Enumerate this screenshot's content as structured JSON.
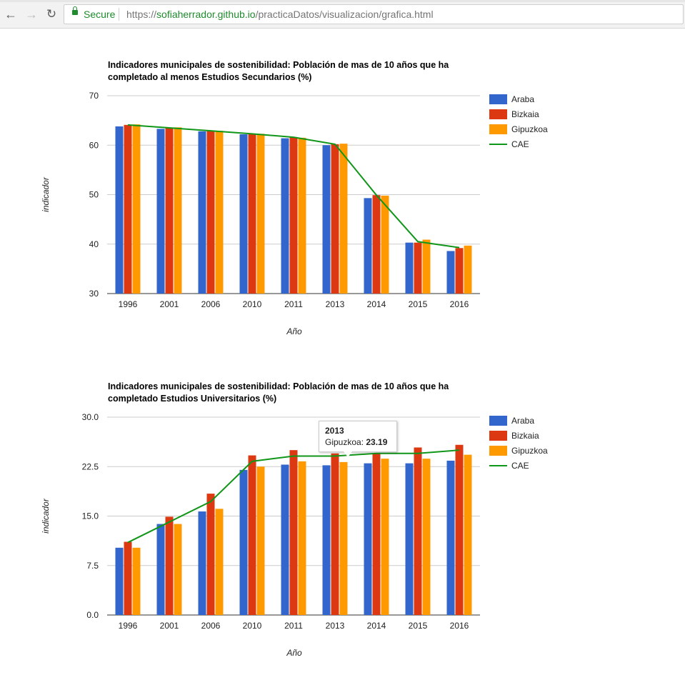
{
  "browser": {
    "back_icon": "←",
    "forward_icon": "→",
    "reload_icon": "↻",
    "secure_label": "Secure",
    "url_scheme": "https://",
    "url_host": "sofiaherrador.github.io",
    "url_path": "/practicaDatos/visualizacion/grafica.html"
  },
  "colors": {
    "Araba": "#3366cc",
    "Bizkaia": "#dc3912",
    "Gipuzkoa": "#ff9900",
    "CAE": "#109618"
  },
  "chart_data": [
    {
      "type": "bar",
      "title": [
        "Indicadores municipales de sostenibilidad: Población de mas de 10 años que ha",
        "completado al menos Estudios Secundarios (%)"
      ],
      "xlabel": "Año",
      "ylabel": "indicador",
      "categories": [
        "1996",
        "2001",
        "2006",
        "2010",
        "2011",
        "2013",
        "2014",
        "2015",
        "2016"
      ],
      "ylim": [
        30,
        70
      ],
      "yticks": [
        30,
        40,
        50,
        60,
        70
      ],
      "ytick_labels": [
        "30",
        "40",
        "50",
        "60",
        "70"
      ],
      "grid": true,
      "legend": "right",
      "series": [
        {
          "name": "Araba",
          "type": "bar",
          "values": [
            63.8,
            63.3,
            62.8,
            62.2,
            61.4,
            60.0,
            49.3,
            40.3,
            38.6
          ]
        },
        {
          "name": "Bizkaia",
          "type": "bar",
          "values": [
            64.1,
            63.5,
            62.9,
            62.3,
            61.6,
            60.2,
            49.9,
            40.3,
            39.2
          ]
        },
        {
          "name": "Gipuzkoa",
          "type": "bar",
          "values": [
            64.2,
            63.6,
            62.9,
            62.3,
            61.5,
            60.3,
            49.8,
            40.9,
            39.7
          ]
        },
        {
          "name": "CAE",
          "type": "line",
          "values": [
            64.1,
            63.5,
            62.9,
            62.3,
            61.6,
            60.2,
            49.9,
            40.5,
            39.3
          ]
        }
      ]
    },
    {
      "type": "bar",
      "title": [
        "Indicadores municipales de sostenibilidad: Población de mas de 10 años que ha",
        "completado Estudios Universitarios (%)"
      ],
      "xlabel": "Año",
      "ylabel": "indicador",
      "categories": [
        "1996",
        "2001",
        "2006",
        "2010",
        "2011",
        "2013",
        "2014",
        "2015",
        "2016"
      ],
      "ylim": [
        0,
        30
      ],
      "yticks": [
        0,
        7.5,
        15,
        22.5,
        30
      ],
      "ytick_labels": [
        "0.0",
        "7.5",
        "15.0",
        "22.5",
        "30.0"
      ],
      "grid": true,
      "legend": "right",
      "series": [
        {
          "name": "Araba",
          "type": "bar",
          "values": [
            10.2,
            13.8,
            15.7,
            22.0,
            22.8,
            22.7,
            23.0,
            23.0,
            23.4
          ]
        },
        {
          "name": "Bizkaia",
          "type": "bar",
          "values": [
            11.1,
            14.9,
            18.4,
            24.2,
            25.0,
            24.5,
            24.5,
            25.4,
            25.8
          ]
        },
        {
          "name": "Gipuzkoa",
          "type": "bar",
          "values": [
            10.2,
            13.8,
            16.1,
            22.5,
            23.3,
            23.19,
            23.7,
            23.7,
            24.3
          ]
        },
        {
          "name": "CAE",
          "type": "line",
          "values": [
            11.0,
            14.1,
            17.2,
            23.3,
            24.1,
            24.1,
            24.5,
            24.5,
            25.0
          ]
        }
      ]
    }
  ],
  "tooltip": {
    "title": "2013",
    "series_label": "Gipuzkoa: ",
    "value": "23.19"
  }
}
